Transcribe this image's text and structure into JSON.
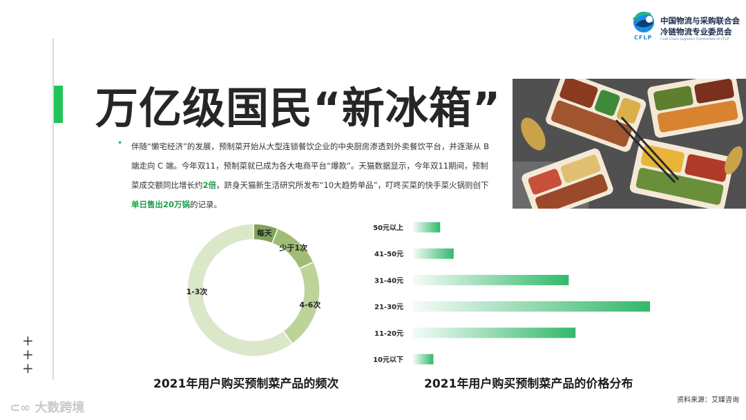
{
  "header": {
    "org_line1": "中国物流与采购联合会",
    "org_line2": "冷链物流专业委员会",
    "org_sub": "Cold Chain Logistics Committee of CFLP",
    "org_abbr": "CFLP"
  },
  "title": "万亿级国民“新冰箱”",
  "paragraph": {
    "part1": "伴随“懒宅经济”的发展，预制菜开始从大型连锁餐饮企业的中央厨房渗透到外卖餐饮平台，并逐渐从 B 端走向 C 端。今年双11，预制菜就已成为各大电商平台“爆款”。天猫数据显示，今年双11期间，预制菜成交额同比增长约",
    "hl1": "2倍",
    "part2": "，跻身天猫新生活研究所发布“10大趋势单品”，叮咚买菜的快手菜火锅则创下",
    "hl2": "单日售出20万锅",
    "part3": "的记录。"
  },
  "chart_data": [
    {
      "type": "pie",
      "title": "2021年用户购买预制菜产品的频次",
      "categories": [
        "每天",
        "少于1次",
        "4-6次",
        "1-3次"
      ],
      "values": [
        6,
        12,
        22,
        60
      ],
      "colors": [
        "#7fa35a",
        "#9fbd74",
        "#bcd49a",
        "#dbe7c9"
      ]
    },
    {
      "type": "bar",
      "title": "2021年用户购买预制菜产品的价格分布",
      "categories": [
        "50元以上",
        "41-50元",
        "31-40元",
        "21-30元",
        "11-20元",
        "10元以下"
      ],
      "values": [
        4,
        6,
        23,
        35,
        24,
        3
      ],
      "xlim": [
        0,
        35
      ],
      "grid": false,
      "color": "#27b562"
    }
  ],
  "source": "资料来源：艾媒咨询",
  "watermark": "大数跨境"
}
